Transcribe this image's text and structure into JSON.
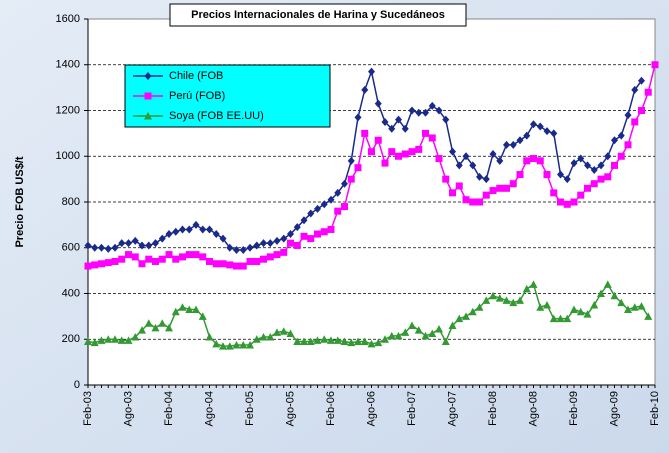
{
  "chart_data": {
    "type": "line",
    "title": "Precios Internacionales de Harina y Sucedáneos",
    "y_label": "Precio FOB US$/t",
    "categories": [
      "Feb-03",
      null,
      null,
      null,
      null,
      null,
      "Ago-03",
      null,
      null,
      null,
      null,
      null,
      "Feb-04",
      null,
      null,
      null,
      null,
      null,
      "Ago-04",
      null,
      null,
      null,
      null,
      null,
      "Feb-05",
      null,
      null,
      null,
      null,
      null,
      "Ago-05",
      null,
      null,
      null,
      null,
      null,
      "Feb-06",
      null,
      null,
      null,
      null,
      null,
      "Ago-06",
      null,
      null,
      null,
      null,
      null,
      "Feb-07",
      null,
      null,
      null,
      null,
      null,
      "Ago-07",
      null,
      null,
      null,
      null,
      null,
      "Feb-08",
      null,
      null,
      null,
      null,
      null,
      "Ago-08",
      null,
      null,
      null,
      null,
      null,
      "Feb-09",
      null,
      null,
      null,
      null,
      null,
      "Ago-09",
      null,
      null,
      null,
      null,
      null,
      "Feb-10"
    ],
    "series": [
      {
        "name": "Chile (FOB",
        "color": "#1a2a8a",
        "marker": "diamond",
        "values": [
          610,
          600,
          600,
          595,
          600,
          620,
          620,
          630,
          610,
          610,
          620,
          640,
          660,
          670,
          680,
          680,
          700,
          680,
          680,
          660,
          640,
          600,
          590,
          590,
          600,
          610,
          620,
          620,
          630,
          640,
          660,
          690,
          720,
          750,
          770,
          790,
          810,
          840,
          880,
          980,
          1170,
          1290,
          1370,
          1230,
          1150,
          1120,
          1160,
          1120,
          1200,
          1190,
          1190,
          1220,
          1200,
          1160,
          1020,
          960,
          1000,
          960,
          910,
          900,
          1010,
          980,
          1050,
          1050,
          1070,
          1090,
          1140,
          1130,
          1110,
          1100,
          920,
          900,
          970,
          990,
          960,
          940,
          960,
          1000,
          1070,
          1090,
          1180,
          1290,
          1330,
          null,
          null
        ]
      },
      {
        "name": "Perú (FOB)",
        "color": "#ff00ff",
        "marker": "square",
        "values": [
          520,
          525,
          530,
          535,
          540,
          550,
          570,
          560,
          530,
          550,
          540,
          550,
          570,
          550,
          560,
          570,
          570,
          560,
          540,
          530,
          530,
          525,
          520,
          520,
          540,
          540,
          550,
          560,
          570,
          580,
          620,
          610,
          650,
          640,
          660,
          670,
          680,
          760,
          780,
          900,
          950,
          1100,
          1020,
          1070,
          970,
          1020,
          1000,
          1010,
          1020,
          1030,
          1100,
          1080,
          990,
          900,
          840,
          870,
          810,
          800,
          800,
          830,
          850,
          860,
          860,
          880,
          920,
          980,
          990,
          980,
          920,
          840,
          800,
          790,
          800,
          830,
          860,
          880,
          900,
          910,
          960,
          1000,
          1050,
          1150,
          1200,
          1280,
          1400
        ]
      },
      {
        "name": "Soya (FOB EE.UU)",
        "color": "#339933",
        "marker": "triangle",
        "values": [
          190,
          185,
          195,
          200,
          200,
          195,
          195,
          210,
          240,
          270,
          250,
          270,
          250,
          320,
          340,
          330,
          330,
          300,
          210,
          180,
          170,
          170,
          175,
          175,
          175,
          200,
          210,
          210,
          230,
          235,
          225,
          190,
          190,
          190,
          195,
          200,
          195,
          195,
          190,
          185,
          190,
          190,
          180,
          185,
          200,
          215,
          215,
          230,
          260,
          240,
          215,
          225,
          245,
          190,
          260,
          290,
          300,
          320,
          340,
          370,
          390,
          380,
          370,
          360,
          370,
          420,
          440,
          340,
          350,
          290,
          290,
          290,
          330,
          320,
          310,
          350,
          400,
          440,
          390,
          360,
          330,
          340,
          345,
          300,
          null
        ]
      }
    ],
    "ylim": [
      0,
      1600
    ],
    "yticks": [
      0,
      200,
      400,
      600,
      800,
      1000,
      1200,
      1400,
      1600
    ],
    "grid": true,
    "legend": "upper left"
  }
}
